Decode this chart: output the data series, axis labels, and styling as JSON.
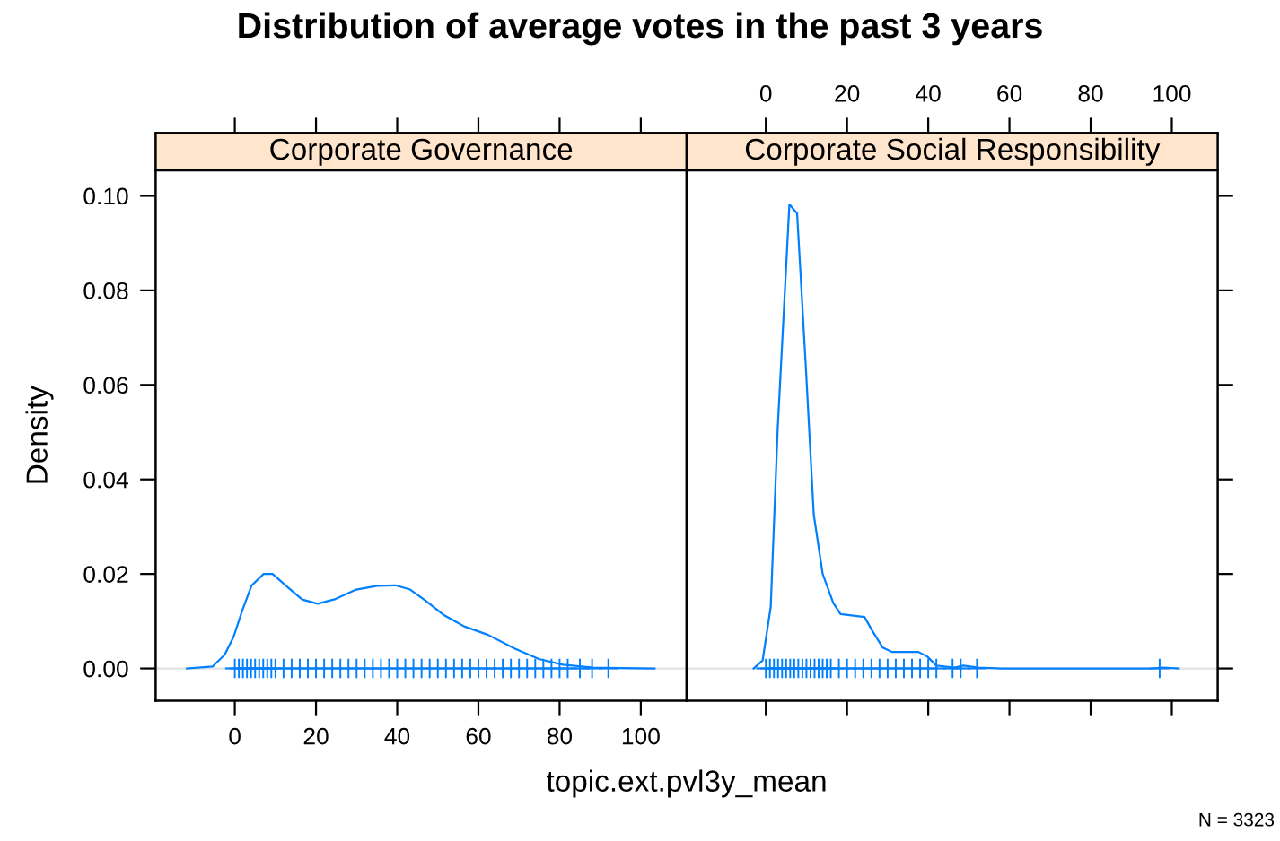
{
  "chart_data": [
    {
      "type": "line",
      "title": "Distribution of average votes in the past 3 years",
      "subtitle": "Corporate Governance",
      "xlabel": "topic.ext.pvl3y_mean",
      "ylabel": "Density",
      "xlim": [
        -19.5,
        111.3
      ],
      "xticks": [
        0,
        20,
        40,
        60,
        80,
        100
      ],
      "ylim": [
        -0.0068,
        0.1054
      ],
      "yticks": [
        {
          "value": 0,
          "label": "0.00"
        },
        {
          "value": 0.02,
          "label": "0.02"
        },
        {
          "value": 0.04,
          "label": "0.04"
        },
        {
          "value": 0.06,
          "label": "0.06"
        },
        {
          "value": 0.08,
          "label": "0.08"
        },
        {
          "value": 0.1,
          "label": "0.10"
        }
      ],
      "ref_lines": [
        {
          "axis": "y",
          "value": 0,
          "color": "#e6e6e6"
        }
      ],
      "series": [
        {
          "color": "#0080ff",
          "x": [
            -11.8,
            -5.5,
            -2.5,
            -0.3,
            1.9,
            4.1,
            7.1,
            9.3,
            13.0,
            16.6,
            20.4,
            24.8,
            29.9,
            35.1,
            39.5,
            43.2,
            46.9,
            51.3,
            56.5,
            62.4,
            69.0,
            74.9,
            80.8,
            88.2,
            95.0,
            103.4
          ],
          "values": [
            0,
            0.0004,
            0.0029,
            0.0067,
            0.0124,
            0.0175,
            0.02,
            0.02,
            0.0172,
            0.0146,
            0.0137,
            0.0147,
            0.0167,
            0.0175,
            0.0176,
            0.0167,
            0.0144,
            0.0114,
            0.0089,
            0.0071,
            0.0042,
            0.002,
            0.0008,
            0.0002,
            0.0001,
            0
          ]
        },
        {
          "type": "scatter",
          "marker": "cross",
          "color": "#0080ff",
          "x": [
            0,
            1,
            2,
            3,
            4,
            5,
            6,
            7,
            8,
            9,
            10,
            12,
            14,
            16,
            18,
            20,
            22,
            24,
            26,
            28,
            30,
            32,
            34,
            36,
            38,
            40,
            42,
            44,
            46,
            48,
            50,
            52,
            54,
            56,
            58,
            60,
            62,
            64,
            66,
            68,
            70,
            72,
            74,
            76,
            78,
            80,
            82,
            85,
            88,
            92
          ],
          "values": [
            0,
            0,
            0,
            0,
            0,
            0,
            0,
            0,
            0,
            0,
            0,
            0,
            0,
            0,
            0,
            0,
            0,
            0,
            0,
            0,
            0,
            0,
            0,
            0,
            0,
            0,
            0,
            0,
            0,
            0,
            0,
            0,
            0,
            0,
            0,
            0,
            0,
            0,
            0,
            0,
            0,
            0,
            0,
            0,
            0,
            0,
            0,
            0,
            0,
            0
          ]
        }
      ]
    },
    {
      "type": "line",
      "subtitle": "Corporate Social Responsibility",
      "tick_labels": "x",
      "annotations": [
        "N = 3323"
      ],
      "xlim": [
        -19.5,
        111.3
      ],
      "xticks": [
        0,
        20,
        40,
        60,
        80,
        100
      ],
      "ylim": [
        -0.0068,
        0.1054
      ],
      "yticks": [
        0,
        0.02,
        0.04,
        0.06,
        0.08,
        0.1
      ],
      "ref_lines": [
        {
          "axis": "y",
          "value": 0,
          "color": "#e6e6e6"
        }
      ],
      "series": [
        {
          "color": "#0080ff",
          "x": [
            -3.0,
            -0.8,
            1.2,
            2.9,
            5.8,
            7.7,
            9.9,
            11.8,
            14.0,
            16.6,
            18.4,
            24.3,
            26.2,
            28.8,
            31.0,
            37.6,
            39.8,
            42.0,
            46.4,
            48.7,
            52.3,
            58.2,
            95.0,
            97.7,
            101.7
          ],
          "values": [
            0,
            0.0017,
            0.013,
            0.0504,
            0.0982,
            0.0963,
            0.063,
            0.0326,
            0.02,
            0.0139,
            0.0115,
            0.0109,
            0.008,
            0.0044,
            0.0035,
            0.0035,
            0.0025,
            0.0006,
            0.0002,
            0.0006,
            0.0002,
            0,
            0,
            0.0002,
            0
          ]
        },
        {
          "type": "scatter",
          "marker": "cross",
          "color": "#0080ff",
          "x": [
            0,
            1,
            2,
            3,
            4,
            5,
            6,
            7,
            8,
            9,
            10,
            11,
            12,
            13,
            14,
            15,
            16,
            18,
            20,
            22,
            24,
            26,
            28,
            30,
            32,
            34,
            36,
            38,
            40,
            42,
            46,
            48,
            52,
            97
          ],
          "values": [
            0,
            0,
            0,
            0,
            0,
            0,
            0,
            0,
            0,
            0,
            0,
            0,
            0,
            0,
            0,
            0,
            0,
            0,
            0,
            0,
            0,
            0,
            0,
            0,
            0,
            0,
            0,
            0,
            0,
            0,
            0,
            0,
            0,
            0
          ]
        }
      ]
    }
  ]
}
